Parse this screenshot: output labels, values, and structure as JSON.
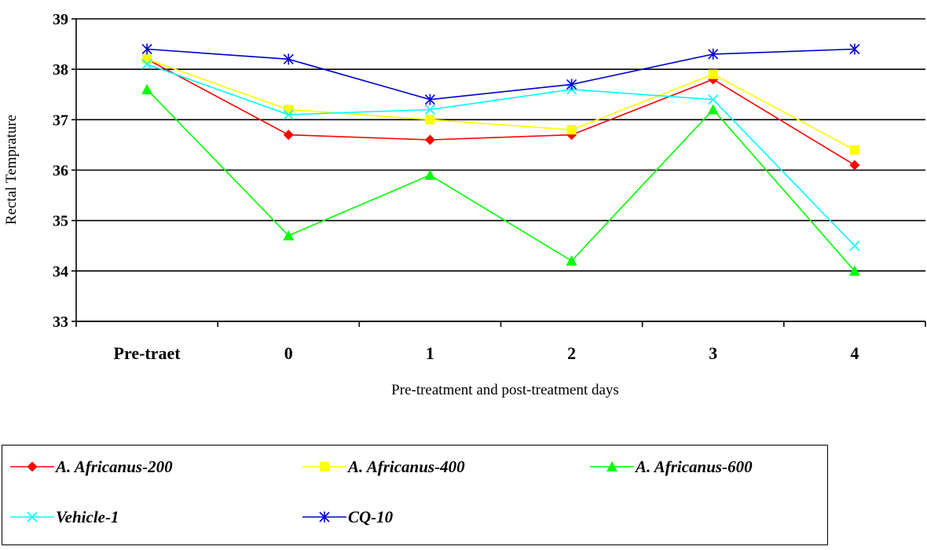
{
  "chart_data": {
    "type": "line",
    "categories": [
      "Pre-traet",
      "0",
      "1",
      "2",
      "3",
      "4"
    ],
    "xlabel": "Pre-treatment and post-treatment days",
    "ylabel": "Rectal Temprature",
    "ylim": [
      33,
      39
    ],
    "yticks": [
      "33",
      "34",
      "35",
      "36",
      "37",
      "38",
      "39"
    ],
    "grid": true,
    "legend_position": "bottom",
    "series": [
      {
        "name": "A. Africanus-200",
        "color": "#ff0000",
        "marker": "diamond",
        "values": [
          38.2,
          36.7,
          36.6,
          36.7,
          37.8,
          36.1
        ]
      },
      {
        "name": "A. Africanus-400",
        "color": "#ffff00",
        "marker": "square",
        "values": [
          38.2,
          37.2,
          37.0,
          36.8,
          37.9,
          36.4
        ]
      },
      {
        "name": "A. Africanus-600",
        "color": "#00ff00",
        "marker": "triangle",
        "values": [
          37.6,
          34.7,
          35.9,
          34.2,
          37.2,
          34.0
        ]
      },
      {
        "name": "Vehicle-1",
        "color": "#00ffff",
        "marker": "x",
        "values": [
          38.1,
          37.1,
          37.2,
          37.6,
          37.4,
          34.5
        ]
      },
      {
        "name": "CQ-10",
        "color": "#0000cc",
        "marker": "star",
        "values": [
          38.4,
          38.2,
          37.4,
          37.7,
          38.3,
          38.4
        ]
      }
    ]
  }
}
